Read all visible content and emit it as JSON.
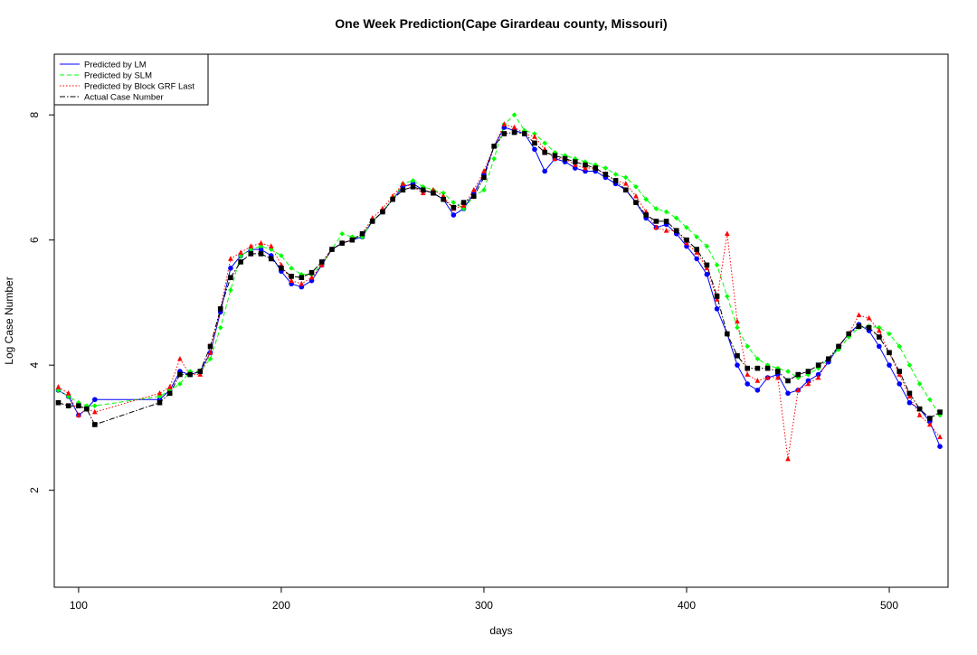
{
  "chart_data": {
    "type": "line",
    "title": "One Week Prediction(Cape Girardeau county, Missouri)",
    "x_label": "days",
    "y_label": "Log Case Number",
    "xlim": [
      88,
      529
    ],
    "ylim": [
      0.45,
      8.97
    ],
    "xticks": [
      100,
      200,
      300,
      400,
      500
    ],
    "yticks": [
      2,
      4,
      6,
      8
    ],
    "legend": "top-left",
    "x": [
      90,
      95,
      100,
      104,
      108,
      140,
      145,
      150,
      155,
      160,
      165,
      170,
      175,
      180,
      185,
      190,
      195,
      200,
      205,
      210,
      215,
      220,
      225,
      230,
      235,
      240,
      245,
      250,
      255,
      260,
      265,
      270,
      275,
      280,
      285,
      290,
      295,
      300,
      305,
      310,
      315,
      320,
      325,
      330,
      335,
      340,
      345,
      350,
      355,
      360,
      365,
      370,
      375,
      380,
      385,
      390,
      395,
      400,
      405,
      410,
      415,
      420,
      425,
      430,
      435,
      440,
      445,
      450,
      455,
      460,
      465,
      470,
      475,
      480,
      485,
      490,
      495,
      500,
      505,
      510,
      515,
      520,
      525
    ],
    "series": [
      {
        "name": "Predicted by LM",
        "color": "#0000ff",
        "line_style": "solid",
        "marker": "circle",
        "values": [
          3.6,
          3.5,
          3.2,
          3.3,
          3.45,
          3.45,
          3.6,
          3.9,
          3.85,
          3.9,
          4.2,
          4.85,
          5.55,
          5.75,
          5.85,
          5.85,
          5.75,
          5.5,
          5.3,
          5.25,
          5.35,
          5.6,
          5.85,
          5.95,
          6.0,
          6.05,
          6.3,
          6.45,
          6.65,
          6.85,
          6.9,
          6.8,
          6.75,
          6.65,
          6.4,
          6.5,
          6.75,
          7.05,
          7.5,
          7.8,
          7.75,
          7.7,
          7.45,
          7.1,
          7.3,
          7.25,
          7.15,
          7.1,
          7.1,
          7.0,
          6.9,
          6.8,
          6.6,
          6.35,
          6.2,
          6.25,
          6.1,
          5.9,
          5.7,
          5.45,
          4.9,
          4.5,
          4.0,
          3.7,
          3.6,
          3.8,
          3.85,
          3.55,
          3.6,
          3.75,
          3.85,
          4.05,
          4.3,
          4.5,
          4.65,
          4.55,
          4.3,
          4.0,
          3.7,
          3.4,
          3.3,
          3.1,
          2.7
        ]
      },
      {
        "name": "Predicted by SLM",
        "color": "#00ff00",
        "line_style": "dashed",
        "marker": "diamond",
        "values": [
          3.6,
          3.5,
          3.4,
          3.35,
          3.35,
          3.5,
          3.6,
          3.7,
          3.9,
          3.9,
          4.1,
          4.6,
          5.2,
          5.75,
          5.85,
          5.9,
          5.85,
          5.75,
          5.55,
          5.45,
          5.45,
          5.6,
          5.85,
          6.1,
          6.05,
          6.05,
          6.3,
          6.45,
          6.65,
          6.9,
          6.95,
          6.85,
          6.8,
          6.75,
          6.6,
          6.5,
          6.7,
          6.8,
          7.3,
          7.85,
          8.0,
          7.75,
          7.7,
          7.55,
          7.4,
          7.35,
          7.3,
          7.25,
          7.2,
          7.15,
          7.05,
          7.0,
          6.85,
          6.65,
          6.5,
          6.45,
          6.35,
          6.2,
          6.05,
          5.9,
          5.6,
          5.1,
          4.6,
          4.3,
          4.1,
          4.0,
          3.95,
          3.9,
          3.8,
          3.85,
          3.95,
          4.1,
          4.25,
          4.45,
          4.6,
          4.62,
          4.6,
          4.5,
          4.3,
          4.0,
          3.7,
          3.45,
          3.2
        ]
      },
      {
        "name": "Predicted by Block GRF Last",
        "color": "#ff0000",
        "line_style": "dotted",
        "marker": "triangle",
        "values": [
          3.65,
          3.55,
          3.2,
          3.3,
          3.25,
          3.55,
          3.65,
          4.1,
          3.85,
          3.85,
          4.2,
          4.9,
          5.7,
          5.8,
          5.9,
          5.95,
          5.9,
          5.6,
          5.35,
          5.3,
          5.4,
          5.6,
          5.85,
          5.95,
          6.0,
          6.1,
          6.35,
          6.5,
          6.7,
          6.9,
          6.85,
          6.75,
          6.8,
          6.7,
          6.5,
          6.55,
          6.8,
          7.1,
          7.5,
          7.85,
          7.8,
          7.7,
          7.65,
          7.45,
          7.3,
          7.3,
          7.2,
          7.15,
          7.15,
          7.05,
          6.95,
          6.9,
          6.7,
          6.45,
          6.2,
          6.15,
          6.15,
          5.95,
          5.8,
          5.55,
          5.05,
          6.1,
          4.7,
          3.85,
          3.75,
          3.8,
          3.8,
          2.5,
          3.6,
          3.7,
          3.8,
          4.1,
          4.3,
          4.5,
          4.8,
          4.75,
          4.55,
          4.2,
          3.85,
          3.5,
          3.2,
          3.05,
          2.85
        ]
      },
      {
        "name": "Actual Case Number",
        "color": "#000000",
        "line_style": "dashdot",
        "marker": "square",
        "values": [
          3.4,
          3.35,
          3.35,
          3.3,
          3.05,
          3.4,
          3.55,
          3.85,
          3.85,
          3.9,
          4.3,
          4.9,
          5.4,
          5.65,
          5.78,
          5.78,
          5.7,
          5.55,
          5.42,
          5.4,
          5.48,
          5.65,
          5.85,
          5.95,
          6.0,
          6.1,
          6.3,
          6.45,
          6.65,
          6.8,
          6.85,
          6.8,
          6.75,
          6.65,
          6.52,
          6.6,
          6.7,
          7.0,
          7.5,
          7.7,
          7.72,
          7.7,
          7.55,
          7.4,
          7.35,
          7.3,
          7.25,
          7.2,
          7.15,
          7.05,
          6.95,
          6.8,
          6.6,
          6.4,
          6.3,
          6.3,
          6.15,
          6.0,
          5.85,
          5.6,
          5.1,
          4.5,
          4.15,
          3.95,
          3.95,
          3.95,
          3.9,
          3.75,
          3.85,
          3.9,
          4.0,
          4.1,
          4.3,
          4.5,
          4.62,
          4.6,
          4.45,
          4.2,
          3.9,
          3.55,
          3.3,
          3.15,
          3.25
        ]
      }
    ]
  }
}
